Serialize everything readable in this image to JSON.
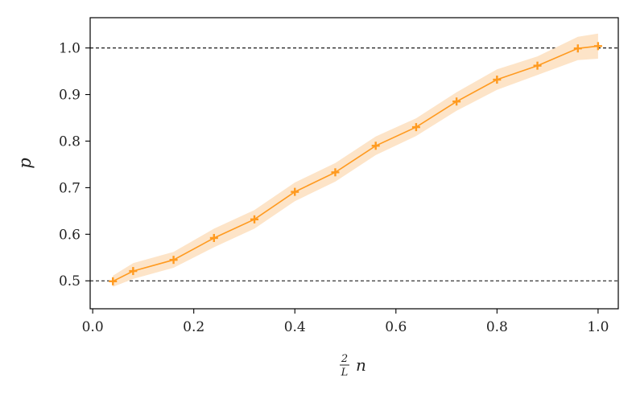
{
  "chart_data": {
    "type": "line",
    "title": "",
    "xlabel": {
      "frac_num": "2",
      "frac_den": "L",
      "var": "n"
    },
    "ylabel": "p",
    "xlim": [
      -0.005,
      1.04
    ],
    "ylim": [
      0.44,
      1.065
    ],
    "xticks": [
      0.0,
      0.2,
      0.4,
      0.6,
      0.8,
      1.0
    ],
    "xtick_labels": [
      "0.0",
      "0.2",
      "0.4",
      "0.6",
      "0.8",
      "1.0"
    ],
    "yticks": [
      0.5,
      0.6,
      0.7,
      0.8,
      0.9,
      1.0
    ],
    "ytick_labels": [
      "0.5",
      "0.6",
      "0.7",
      "0.8",
      "0.9",
      "1.0"
    ],
    "reference_lines": [
      0.5,
      1.0
    ],
    "grid": false,
    "series": [
      {
        "color": "#ff9a1f",
        "band_color": "#fde4c8",
        "marker": "plus",
        "x": [
          0.04,
          0.08,
          0.16,
          0.24,
          0.32,
          0.4,
          0.48,
          0.56,
          0.64,
          0.72,
          0.8,
          0.88,
          0.96,
          1.0
        ],
        "y": [
          0.499,
          0.521,
          0.545,
          0.592,
          0.632,
          0.691,
          0.733,
          0.79,
          0.83,
          0.885,
          0.932,
          0.962,
          0.999,
          1.004
        ],
        "band_halfwidth": [
          0.012,
          0.017,
          0.017,
          0.02,
          0.02,
          0.02,
          0.02,
          0.02,
          0.019,
          0.02,
          0.022,
          0.02,
          0.025,
          0.027
        ]
      }
    ]
  }
}
